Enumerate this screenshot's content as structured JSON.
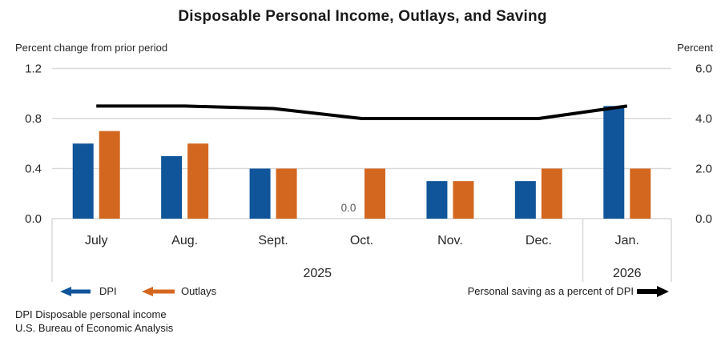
{
  "title": "Disposable Personal Income, Outlays, and Saving",
  "left_axis": {
    "unit": "Percent change from prior period",
    "tick_labels": [
      "1.2",
      "0.8",
      "0.4",
      "0.0"
    ],
    "tick_values": [
      1.2,
      0.8,
      0.4,
      0.0
    ]
  },
  "right_axis": {
    "unit": "Percent",
    "tick_labels": [
      "6.0",
      "4.0",
      "2.0",
      "0.0"
    ],
    "tick_values": [
      6.0,
      4.0,
      2.0,
      0.0
    ]
  },
  "chart_data": {
    "type": "bar",
    "categories": [
      "July",
      "Aug.",
      "Sept.",
      "Oct.",
      "Nov.",
      "Dec.",
      "Jan."
    ],
    "year_groups": [
      {
        "label": "2025",
        "span": 6
      },
      {
        "label": "2026",
        "span": 1
      }
    ],
    "series": [
      {
        "name": "DPI",
        "type": "bar",
        "axis": "left",
        "color": "#10559a",
        "values": [
          0.6,
          0.5,
          0.4,
          0.0,
          0.3,
          0.3,
          0.9
        ]
      },
      {
        "name": "Outlays",
        "type": "bar",
        "axis": "left",
        "color": "#d4671f",
        "values": [
          0.7,
          0.6,
          0.4,
          0.4,
          0.3,
          0.4,
          0.4
        ]
      },
      {
        "name": "Personal saving as a percent of DPI",
        "type": "line",
        "axis": "right",
        "color": "#000000",
        "values": [
          4.5,
          4.5,
          4.4,
          4.0,
          4.0,
          4.0,
          4.5
        ]
      }
    ],
    "data_labels": [
      {
        "series": "DPI",
        "category_index": 3,
        "text": "0.0"
      }
    ],
    "left_ylim": [
      0,
      1.2
    ],
    "right_ylim": [
      0,
      6.0
    ],
    "grid": true,
    "legend_position": "bottom"
  },
  "legend": {
    "dpi_label": "DPI",
    "outlays_label": "Outlays",
    "saving_label": "Personal saving as a percent of DPI"
  },
  "footnotes": [
    "DPI Disposable personal income",
    "U.S. Bureau of Economic Analysis"
  ],
  "colors": {
    "dpi_bar": "#10559a",
    "outlays_bar": "#d4671f",
    "saving_line": "#000000",
    "gridline": "#d9d9d9",
    "axis_text": "#262626",
    "data_label_text": "#595959"
  }
}
